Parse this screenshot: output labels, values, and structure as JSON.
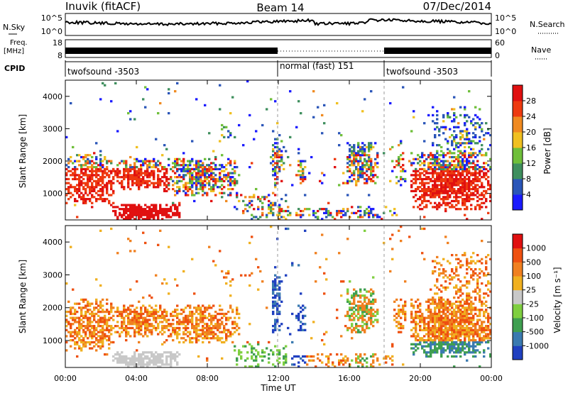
{
  "header": {
    "station": "Inuvik (fitACF)",
    "beam": "Beam 14",
    "date": "07/Dec/2014"
  },
  "noise_panel": {
    "left_label": "N.Sky",
    "left_ticks": [
      "10^5",
      "10^0"
    ],
    "right_label": "N.Search",
    "right_ticks": [
      "10^5",
      "10^0"
    ]
  },
  "freq_panel": {
    "left_label_1": "Freq.",
    "left_label_2": "[MHz]",
    "left_ticks": [
      "18",
      "8"
    ],
    "right_label": "Nave",
    "right_ticks": [
      "60",
      "0"
    ]
  },
  "cpid_panel": {
    "label": "CPID",
    "segments": [
      {
        "text": "twofsound -3503",
        "start_hour": 0
      },
      {
        "text": "normal (fast) 151",
        "start_hour": 12
      },
      {
        "text": "twofsound -3503",
        "start_hour": 18
      }
    ]
  },
  "power_panel": {
    "ylabel": "Slant Range [km]",
    "yticks": [
      "1000",
      "2000",
      "3000",
      "4000"
    ],
    "colorbar_label": "Power [dB]",
    "colorbar_ticks": [
      "4",
      "8",
      "12",
      "16",
      "20",
      "24",
      "28"
    ]
  },
  "velocity_panel": {
    "ylabel": "Slant Range [km]",
    "yticks": [
      "1000",
      "2000",
      "3000",
      "4000"
    ],
    "colorbar_label": "Velocity [m s⁻¹]",
    "colorbar_ticks": [
      "1000",
      "500",
      "100",
      "25",
      "-25",
      "-100",
      "-500",
      "-1000"
    ]
  },
  "xaxis": {
    "label": "Time UT",
    "ticks": [
      "00:00",
      "04:00",
      "08:00",
      "12:00",
      "16:00",
      "20:00",
      "00:00"
    ]
  },
  "colors": {
    "power_scale": [
      "#1a1aff",
      "#2a55b8",
      "#3f8f5e",
      "#6fbf3a",
      "#f0c020",
      "#f08a20",
      "#ee3a10",
      "#e01010"
    ],
    "velocity_scale": [
      "#2040c0",
      "#3a7ab0",
      "#3f9f50",
      "#7fcf40",
      "#c8c8c8",
      "#f0b020",
      "#f08020",
      "#ee5010",
      "#e01010"
    ]
  },
  "chart_data": {
    "type": "heatmap",
    "x_range_hours": [
      0,
      24
    ],
    "y_range_km": [
      180,
      4500
    ],
    "panels": [
      "Power [dB]",
      "Velocity [m s⁻¹]"
    ],
    "power_ticks_db": [
      4,
      8,
      12,
      16,
      20,
      24,
      28
    ],
    "velocity_ticks_ms": [
      1000,
      500,
      100,
      25,
      -25,
      -100,
      -500,
      -1000
    ]
  }
}
